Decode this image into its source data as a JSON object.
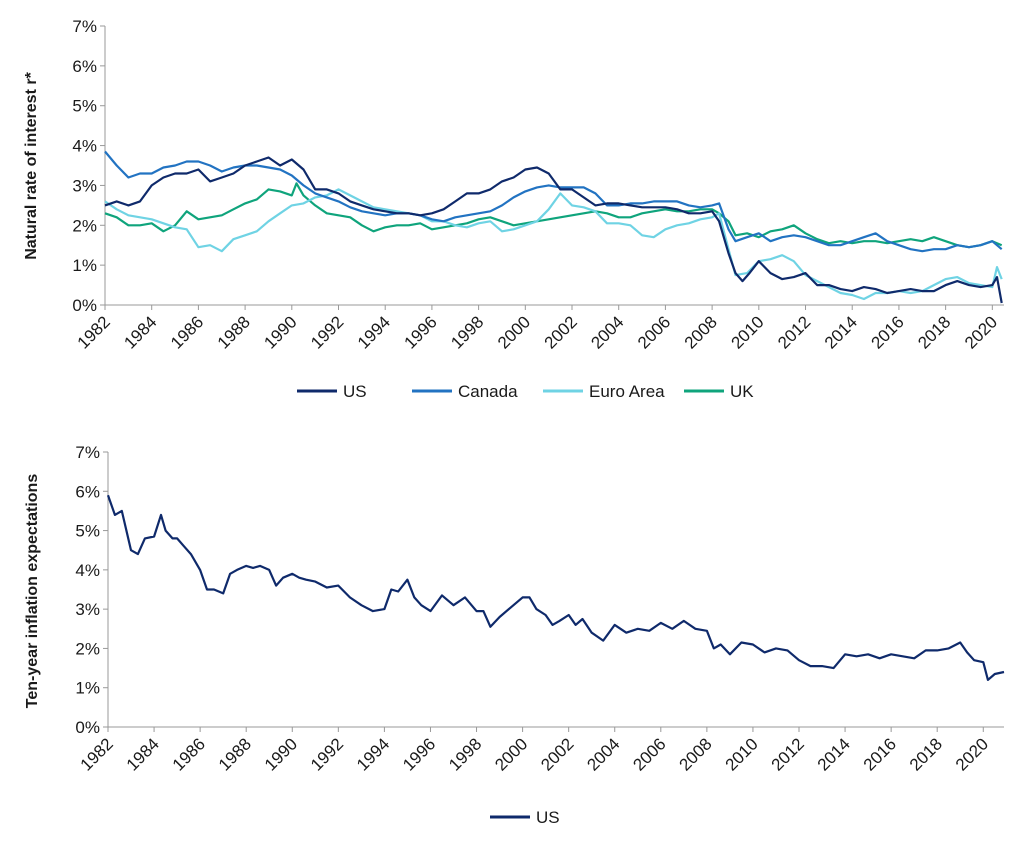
{
  "chart_data": [
    {
      "type": "line",
      "ylabel": "Natural rate of interest r*",
      "xlim": [
        1982,
        2020.5
      ],
      "ylim": [
        0,
        7
      ],
      "yticks": [
        "0%",
        "1%",
        "2%",
        "3%",
        "4%",
        "5%",
        "6%",
        "7%"
      ],
      "xticks": [
        "1982",
        "1984",
        "1986",
        "1988",
        "1990",
        "1992",
        "1994",
        "1996",
        "1998",
        "2000",
        "2002",
        "2004",
        "2006",
        "2008",
        "2010",
        "2012",
        "2014",
        "2016",
        "2018",
        "2020"
      ],
      "grid": false,
      "legend_position": "bottom",
      "series": [
        {
          "name": "US",
          "color": "#0f2a6b",
          "x": [
            1982,
            1982.5,
            1983,
            1983.5,
            1984,
            1984.5,
            1985,
            1985.5,
            1986,
            1986.5,
            1987,
            1987.5,
            1988,
            1988.5,
            1989,
            1989.5,
            1990,
            1990.5,
            1991,
            1991.5,
            1992,
            1992.5,
            1993,
            1993.5,
            1994,
            1994.5,
            1995,
            1995.5,
            1996,
            1996.5,
            1997,
            1997.5,
            1998,
            1998.5,
            1999,
            1999.5,
            2000,
            2000.5,
            2001,
            2001.5,
            2002,
            2002.5,
            2003,
            2003.5,
            2004,
            2004.5,
            2005,
            2005.5,
            2006,
            2006.5,
            2007,
            2007.5,
            2008,
            2008.3,
            2008.7,
            2009,
            2009.3,
            2009.6,
            2010,
            2010.5,
            2011,
            2011.5,
            2012,
            2012.5,
            2013,
            2013.5,
            2014,
            2014.5,
            2015,
            2015.5,
            2016,
            2016.5,
            2017,
            2017.5,
            2018,
            2018.5,
            2019,
            2019.5,
            2020,
            2020.2,
            2020.4
          ],
          "y": [
            2.5,
            2.6,
            2.5,
            2.6,
            3.0,
            3.2,
            3.3,
            3.3,
            3.4,
            3.1,
            3.2,
            3.3,
            3.5,
            3.6,
            3.7,
            3.5,
            3.65,
            3.4,
            2.9,
            2.9,
            2.8,
            2.6,
            2.5,
            2.4,
            2.35,
            2.3,
            2.3,
            2.25,
            2.3,
            2.4,
            2.6,
            2.8,
            2.8,
            2.9,
            3.1,
            3.2,
            3.4,
            3.45,
            3.3,
            2.9,
            2.9,
            2.7,
            2.5,
            2.55,
            2.55,
            2.5,
            2.45,
            2.45,
            2.45,
            2.4,
            2.3,
            2.3,
            2.35,
            2.1,
            1.3,
            0.8,
            0.6,
            0.8,
            1.1,
            0.8,
            0.65,
            0.7,
            0.8,
            0.5,
            0.5,
            0.4,
            0.35,
            0.45,
            0.4,
            0.3,
            0.35,
            0.4,
            0.35,
            0.35,
            0.5,
            0.6,
            0.5,
            0.45,
            0.5,
            0.7,
            0.05
          ]
        },
        {
          "name": "Canada",
          "color": "#2273c2",
          "x": [
            1982,
            1982.5,
            1983,
            1983.5,
            1984,
            1984.5,
            1985,
            1985.5,
            1986,
            1986.5,
            1987,
            1987.5,
            1988,
            1988.5,
            1989,
            1989.5,
            1990,
            1990.5,
            1991,
            1991.5,
            1992,
            1992.5,
            1993,
            1993.5,
            1994,
            1994.5,
            1995,
            1995.5,
            1996,
            1996.5,
            1997,
            1997.5,
            1998,
            1998.5,
            1999,
            1999.5,
            2000,
            2000.5,
            2001,
            2001.5,
            2002,
            2002.5,
            2003,
            2003.5,
            2004,
            2004.5,
            2005,
            2005.5,
            2006,
            2006.5,
            2007,
            2007.5,
            2008,
            2008.3,
            2008.7,
            2009,
            2009.5,
            2010,
            2010.5,
            2011,
            2011.5,
            2012,
            2012.5,
            2013,
            2013.5,
            2014,
            2014.5,
            2015,
            2015.5,
            2016,
            2016.5,
            2017,
            2017.5,
            2018,
            2018.5,
            2019,
            2019.5,
            2020,
            2020.4
          ],
          "y": [
            3.85,
            3.5,
            3.2,
            3.3,
            3.3,
            3.45,
            3.5,
            3.6,
            3.6,
            3.5,
            3.35,
            3.45,
            3.5,
            3.5,
            3.45,
            3.4,
            3.25,
            3.0,
            2.8,
            2.7,
            2.6,
            2.45,
            2.35,
            2.3,
            2.25,
            2.3,
            2.3,
            2.25,
            2.15,
            2.1,
            2.2,
            2.25,
            2.3,
            2.35,
            2.5,
            2.7,
            2.85,
            2.95,
            3.0,
            2.95,
            2.95,
            2.95,
            2.8,
            2.5,
            2.5,
            2.55,
            2.55,
            2.6,
            2.6,
            2.6,
            2.5,
            2.45,
            2.5,
            2.55,
            1.9,
            1.6,
            1.7,
            1.8,
            1.6,
            1.7,
            1.75,
            1.7,
            1.6,
            1.5,
            1.5,
            1.6,
            1.7,
            1.8,
            1.6,
            1.5,
            1.4,
            1.35,
            1.4,
            1.4,
            1.5,
            1.45,
            1.5,
            1.6,
            1.4
          ]
        },
        {
          "name": "Euro Area",
          "color": "#6fd3e4",
          "x": [
            1982,
            1982.5,
            1983,
            1983.5,
            1984,
            1984.5,
            1985,
            1985.5,
            1986,
            1986.5,
            1987,
            1987.5,
            1988,
            1988.5,
            1989,
            1989.5,
            1990,
            1990.5,
            1991,
            1991.5,
            1992,
            1992.5,
            1993,
            1993.5,
            1994,
            1994.5,
            1995,
            1995.5,
            1996,
            1996.5,
            1997,
            1997.5,
            1998,
            1998.5,
            1999,
            1999.5,
            2000,
            2000.5,
            2001,
            2001.5,
            2002,
            2002.5,
            2003,
            2003.5,
            2004,
            2004.5,
            2005,
            2005.5,
            2006,
            2006.5,
            2007,
            2007.5,
            2008,
            2008.3,
            2008.7,
            2009,
            2009.5,
            2010,
            2010.5,
            2011,
            2011.5,
            2012,
            2012.5,
            2013,
            2013.5,
            2014,
            2014.5,
            2015,
            2015.5,
            2016,
            2016.5,
            2017,
            2017.5,
            2018,
            2018.5,
            2019,
            2019.5,
            2020,
            2020.2,
            2020.4
          ],
          "y": [
            2.6,
            2.4,
            2.25,
            2.2,
            2.15,
            2.05,
            1.95,
            1.9,
            1.45,
            1.5,
            1.35,
            1.65,
            1.75,
            1.85,
            2.1,
            2.3,
            2.5,
            2.55,
            2.7,
            2.75,
            2.9,
            2.75,
            2.6,
            2.45,
            2.4,
            2.35,
            2.3,
            2.25,
            2.1,
            2.1,
            2.0,
            1.95,
            2.05,
            2.1,
            1.85,
            1.9,
            2.0,
            2.1,
            2.4,
            2.8,
            2.5,
            2.45,
            2.35,
            2.05,
            2.05,
            2.0,
            1.75,
            1.7,
            1.9,
            2.0,
            2.05,
            2.15,
            2.2,
            2.3,
            1.4,
            0.75,
            0.8,
            1.1,
            1.15,
            1.25,
            1.1,
            0.75,
            0.6,
            0.45,
            0.3,
            0.25,
            0.15,
            0.3,
            0.3,
            0.35,
            0.3,
            0.35,
            0.5,
            0.65,
            0.7,
            0.55,
            0.5,
            0.45,
            0.95,
            0.65
          ]
        },
        {
          "name": "UK",
          "color": "#0fa47c",
          "x": [
            1982,
            1982.5,
            1983,
            1983.5,
            1984,
            1984.5,
            1985,
            1985.5,
            1986,
            1986.5,
            1987,
            1987.5,
            1988,
            1988.5,
            1989,
            1989.5,
            1990,
            1990.2,
            1990.5,
            1991,
            1991.5,
            1992,
            1992.5,
            1993,
            1993.5,
            1994,
            1994.5,
            1995,
            1995.5,
            1996,
            1996.5,
            1997,
            1997.5,
            1998,
            1998.5,
            1999,
            1999.5,
            2000,
            2000.5,
            2001,
            2001.5,
            2002,
            2002.5,
            2003,
            2003.5,
            2004,
            2004.5,
            2005,
            2005.5,
            2006,
            2006.5,
            2007,
            2007.5,
            2008,
            2008.3,
            2008.7,
            2009,
            2009.5,
            2010,
            2010.5,
            2011,
            2011.5,
            2012,
            2012.5,
            2013,
            2013.5,
            2014,
            2014.5,
            2015,
            2015.5,
            2016,
            2016.5,
            2017,
            2017.5,
            2018,
            2018.5,
            2019,
            2019.5,
            2020,
            2020.4
          ],
          "y": [
            2.3,
            2.2,
            2.0,
            2.0,
            2.05,
            1.85,
            2.0,
            2.35,
            2.15,
            2.2,
            2.25,
            2.4,
            2.55,
            2.65,
            2.9,
            2.85,
            2.75,
            3.05,
            2.75,
            2.5,
            2.3,
            2.25,
            2.2,
            2.0,
            1.85,
            1.95,
            2.0,
            2.0,
            2.05,
            1.9,
            1.95,
            2.0,
            2.05,
            2.15,
            2.2,
            2.1,
            2.0,
            2.05,
            2.1,
            2.15,
            2.2,
            2.25,
            2.3,
            2.35,
            2.3,
            2.2,
            2.2,
            2.3,
            2.35,
            2.4,
            2.35,
            2.35,
            2.4,
            2.4,
            2.3,
            2.1,
            1.75,
            1.8,
            1.7,
            1.85,
            1.9,
            2.0,
            1.8,
            1.65,
            1.55,
            1.6,
            1.55,
            1.6,
            1.6,
            1.55,
            1.6,
            1.65,
            1.6,
            1.7,
            1.6,
            1.5,
            1.45,
            1.5,
            1.6,
            1.5
          ]
        }
      ]
    },
    {
      "type": "line",
      "ylabel": "Ten-year inflation expectations",
      "xlim": [
        1982,
        2020.9
      ],
      "ylim": [
        0,
        7
      ],
      "yticks": [
        "0%",
        "1%",
        "2%",
        "3%",
        "4%",
        "5%",
        "6%",
        "7%"
      ],
      "xticks": [
        "1982",
        "1984",
        "1986",
        "1988",
        "1990",
        "1992",
        "1994",
        "1996",
        "1998",
        "2000",
        "2002",
        "2004",
        "2006",
        "2008",
        "2010",
        "2012",
        "2014",
        "2016",
        "2018",
        "2020"
      ],
      "grid": false,
      "legend_position": "bottom",
      "series": [
        {
          "name": "US",
          "color": "#0f2a6b",
          "x": [
            1982,
            1982.3,
            1982.6,
            1983,
            1983.3,
            1983.6,
            1984,
            1984.3,
            1984.5,
            1984.8,
            1985,
            1985.3,
            1985.6,
            1986,
            1986.3,
            1986.6,
            1987,
            1987.3,
            1987.6,
            1988,
            1988.3,
            1988.6,
            1989,
            1989.3,
            1989.6,
            1990,
            1990.3,
            1990.6,
            1991,
            1991.5,
            1992,
            1992.5,
            1993,
            1993.5,
            1994,
            1994.3,
            1994.6,
            1995,
            1995.3,
            1995.6,
            1996,
            1996.5,
            1997,
            1997.5,
            1998,
            1998.3,
            1998.6,
            1999,
            1999.5,
            2000,
            2000.3,
            2000.6,
            2001,
            2001.3,
            2001.6,
            2002,
            2002.3,
            2002.6,
            2003,
            2003.5,
            2004,
            2004.5,
            2005,
            2005.5,
            2006,
            2006.5,
            2007,
            2007.5,
            2008,
            2008.3,
            2008.6,
            2009,
            2009.5,
            2010,
            2010.5,
            2011,
            2011.5,
            2012,
            2012.5,
            2013,
            2013.5,
            2014,
            2014.5,
            2015,
            2015.5,
            2016,
            2016.5,
            2017,
            2017.5,
            2018,
            2018.5,
            2019,
            2019.3,
            2019.6,
            2020,
            2020.2,
            2020.5,
            2020.9
          ],
          "y": [
            5.9,
            5.4,
            5.5,
            4.5,
            4.4,
            4.8,
            4.85,
            5.4,
            5.0,
            4.8,
            4.8,
            4.6,
            4.4,
            4.0,
            3.5,
            3.5,
            3.4,
            3.9,
            4.0,
            4.1,
            4.05,
            4.1,
            4.0,
            3.6,
            3.8,
            3.9,
            3.8,
            3.75,
            3.7,
            3.55,
            3.6,
            3.3,
            3.1,
            2.95,
            3.0,
            3.5,
            3.45,
            3.75,
            3.3,
            3.1,
            2.95,
            3.35,
            3.1,
            3.3,
            2.95,
            2.95,
            2.55,
            2.8,
            3.05,
            3.3,
            3.3,
            3.0,
            2.85,
            2.6,
            2.7,
            2.85,
            2.6,
            2.75,
            2.4,
            2.2,
            2.6,
            2.4,
            2.5,
            2.45,
            2.65,
            2.5,
            2.7,
            2.5,
            2.45,
            2.0,
            2.1,
            1.85,
            2.15,
            2.1,
            1.9,
            2.0,
            1.95,
            1.7,
            1.55,
            1.55,
            1.5,
            1.85,
            1.8,
            1.85,
            1.75,
            1.85,
            1.8,
            1.75,
            1.95,
            1.95,
            2.0,
            2.15,
            1.9,
            1.7,
            1.65,
            1.2,
            1.35,
            1.4
          ]
        }
      ]
    }
  ]
}
